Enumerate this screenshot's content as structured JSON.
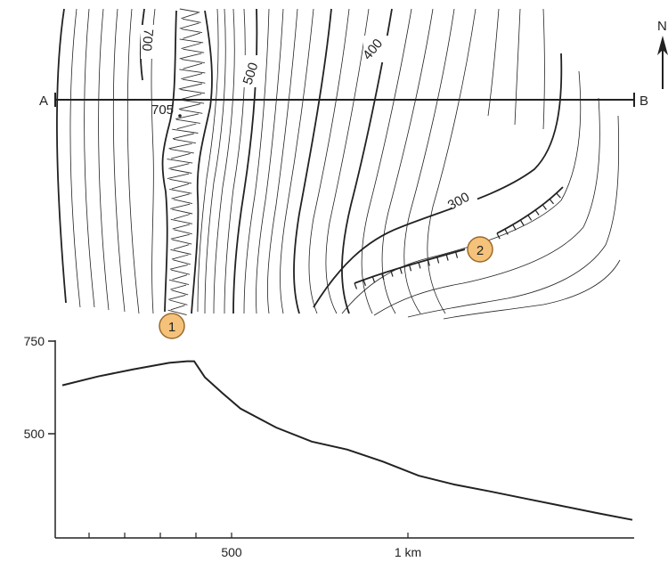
{
  "map": {
    "section_start": "A",
    "section_end": "B",
    "north_label": "N",
    "spot_height": "705",
    "contour_labels": [
      "700",
      "500",
      "400",
      "300"
    ],
    "markers": [
      "1",
      "2"
    ]
  },
  "profile": {
    "y_ticks": [
      "750",
      "500"
    ],
    "x_ticks": [
      "500",
      "1 km"
    ]
  },
  "chart_data": {
    "type": "line",
    "title": "",
    "xlabel": "",
    "ylabel": "",
    "xlim": [
      0,
      1600
    ],
    "ylim": [
      260,
      750
    ],
    "x": [
      0,
      100,
      200,
      300,
      350,
      370,
      400,
      450,
      500,
      600,
      700,
      800,
      900,
      1000,
      1100,
      1200,
      1300,
      1400,
      1500,
      1600
    ],
    "series": [
      {
        "values": [
          640,
          662,
          680,
          696,
          700,
          700,
          660,
          620,
          582,
          535,
          500,
          480,
          450,
          415,
          393,
          376,
          358,
          340,
          322,
          305
        ]
      }
    ]
  }
}
